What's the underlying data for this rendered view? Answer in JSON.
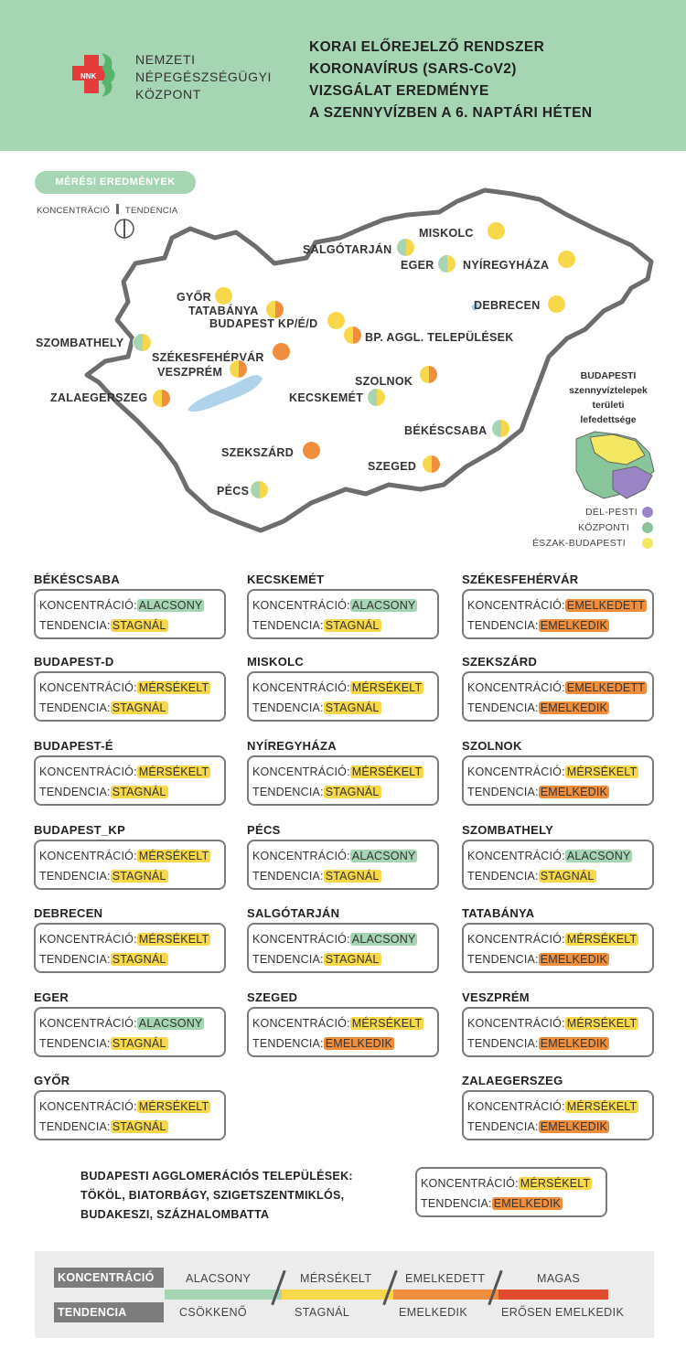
{
  "header": {
    "org_lines": [
      "NEMZETI",
      "NÉPEGÉSZSÉGÜGYI",
      "KÖZPONT"
    ],
    "logo_text": "NNK",
    "title_lines": [
      "KORAI ELŐREJELZŐ RENDSZER",
      "KORONAVÍRUS (SARS-CoV2)",
      "VIZSGÁLAT EREDMÉNYE",
      "A SZENNYVÍZBEN A 6. NAPTÁRI HÉTEN"
    ]
  },
  "legend": {
    "pill": "MÉRÉSI EREDMÉNYEK",
    "koncentracio": "KONCENTRÁCIÓ",
    "tendencia": "TENDENCIA"
  },
  "colors": {
    "alacsony": "#a6d5b4",
    "merseklet": "#f7d84a",
    "emelkedett": "#ef8f3e",
    "magas": "#e04b2d",
    "border": "#7a7a7a",
    "map_outline": "#6d6d6d",
    "lake": "#aed3ea",
    "del_pesti": "#9b84c6",
    "kozponti": "#88c59b",
    "eszak_budapesti": "#f4e761"
  },
  "map": {
    "cities": [
      {
        "name": "MISKOLC",
        "conc": "merseklet",
        "tend": "merseklet"
      },
      {
        "name": "SALGÓTARJÁN",
        "conc": "alacsony",
        "tend": "merseklet"
      },
      {
        "name": "EGER",
        "conc": "alacsony",
        "tend": "merseklet"
      },
      {
        "name": "NYÍREGYHÁZA",
        "conc": "merseklet",
        "tend": "merseklet"
      },
      {
        "name": "GYŐR",
        "conc": "merseklet",
        "tend": "merseklet"
      },
      {
        "name": "TATABÁNYA",
        "conc": "merseklet",
        "tend": "emelkedett"
      },
      {
        "name": "BUDAPEST KP/É/D",
        "conc": "merseklet",
        "tend": "merseklet"
      },
      {
        "name": "DEBRECEN",
        "conc": "merseklet",
        "tend": "merseklet"
      },
      {
        "name": "BP. AGGL. TELEPÜLÉSEK",
        "conc": "merseklet",
        "tend": "emelkedett"
      },
      {
        "name": "SZOMBATHELY",
        "conc": "alacsony",
        "tend": "merseklet"
      },
      {
        "name": "SZÉKESFEHÉRVÁR",
        "conc": "emelkedett",
        "tend": "emelkedett"
      },
      {
        "name": "VESZPRÉM",
        "conc": "merseklet",
        "tend": "emelkedett"
      },
      {
        "name": "SZOLNOK",
        "conc": "merseklet",
        "tend": "emelkedett"
      },
      {
        "name": "ZALAEGERSZEG",
        "conc": "merseklet",
        "tend": "emelkedett"
      },
      {
        "name": "KECSKEMÉT",
        "conc": "alacsony",
        "tend": "merseklet"
      },
      {
        "name": "BÉKÉSCSABA",
        "conc": "alacsony",
        "tend": "merseklet"
      },
      {
        "name": "SZEKSZÁRD",
        "conc": "emelkedett",
        "tend": "emelkedett"
      },
      {
        "name": "SZEGED",
        "conc": "merseklet",
        "tend": "emelkedett"
      },
      {
        "name": "PÉCS",
        "conc": "alacsony",
        "tend": "merseklet"
      }
    ],
    "bp_inset": {
      "title_lines": [
        "BUDAPESTI",
        "szennyvíztelepek",
        "területi",
        "lefedettsége"
      ],
      "legend": [
        "DÉL-PESTI",
        "KÖZPONTI",
        "ÉSZAK-BUDAPESTI"
      ]
    }
  },
  "labels": {
    "konc": "KONCENTRÁCIÓ:",
    "tend": "TENDENCIA:"
  },
  "values": {
    "alacsony": "ALACSONY",
    "merseklet": "MÉRSÉKELT",
    "emelkedett": "EMELKEDETT",
    "stagnal": "STAGNÁL",
    "emelkedik": "EMELKEDIK"
  },
  "cards": [
    {
      "name": "BÉKÉSCSABA",
      "konc": "ALACSONY",
      "tend": "STAGNÁL"
    },
    {
      "name": "KECSKEMÉT",
      "konc": "ALACSONY",
      "tend": "STAGNÁL"
    },
    {
      "name": "SZÉKESFEHÉRVÁR",
      "konc": "EMELKEDETT",
      "tend": "EMELKEDIK"
    },
    {
      "name": "BUDAPEST-D",
      "konc": "MÉRSÉKELT",
      "tend": "STAGNÁL"
    },
    {
      "name": "MISKOLC",
      "konc": "MÉRSÉKELT",
      "tend": "STAGNÁL"
    },
    {
      "name": "SZEKSZÁRD",
      "konc": "EMELKEDETT",
      "tend": "EMELKEDIK"
    },
    {
      "name": "BUDAPEST-É",
      "konc": "MÉRSÉKELT",
      "tend": "STAGNÁL"
    },
    {
      "name": "NYÍREGYHÁZA",
      "konc": "MÉRSÉKELT",
      "tend": "STAGNÁL"
    },
    {
      "name": "SZOLNOK",
      "konc": "MÉRSÉKELT",
      "tend": "EMELKEDIK"
    },
    {
      "name": "BUDAPEST_KP",
      "konc": "MÉRSÉKELT",
      "tend": "STAGNÁL"
    },
    {
      "name": "PÉCS",
      "konc": "ALACSONY",
      "tend": "STAGNÁL"
    },
    {
      "name": "SZOMBATHELY",
      "konc": "ALACSONY",
      "tend": "STAGNÁL"
    },
    {
      "name": "DEBRECEN",
      "konc": "MÉRSÉKELT",
      "tend": "STAGNÁL"
    },
    {
      "name": "SALGÓTARJÁN",
      "konc": "ALACSONY",
      "tend": "STAGNÁL"
    },
    {
      "name": "TATABÁNYA",
      "konc": "MÉRSÉKELT",
      "tend": "EMELKEDIK"
    },
    {
      "name": "EGER",
      "konc": "ALACSONY",
      "tend": "STAGNÁL"
    },
    {
      "name": "SZEGED",
      "konc": "MÉRSÉKELT",
      "tend": "EMELKEDIK"
    },
    {
      "name": "VESZPRÉM",
      "konc": "MÉRSÉKELT",
      "tend": "EMELKEDIK"
    },
    {
      "name": "GYŐR",
      "konc": "MÉRSÉKELT",
      "tend": "STAGNÁL"
    },
    {
      "name": "ZALAEGERSZEG",
      "konc": "MÉRSÉKELT",
      "tend": "EMELKEDIK"
    }
  ],
  "agglomeration": {
    "lines": [
      "BUDAPESTI AGGLOMERÁCIÓS TELEPÜLÉSEK:",
      "TÖKÖL, BIATORBÁGY, SZIGETSZENTMIKLÓS,",
      "BUDAKESZI, SZÁZHALOMBATTA"
    ],
    "konc": "MÉRSÉKELT",
    "tend": "EMELKEDIK"
  },
  "scale": {
    "konc_label": "KONCENTRÁCIÓ",
    "tend_label": "TENDENCIA",
    "konc_levels": [
      "ALACSONY",
      "MÉRSÉKELT",
      "EMELKEDETT",
      "MAGAS"
    ],
    "tend_levels": [
      "CSÖKKENŐ",
      "STAGNÁL",
      "EMELKEDIK",
      "ERŐSEN EMELKEDIK"
    ]
  }
}
